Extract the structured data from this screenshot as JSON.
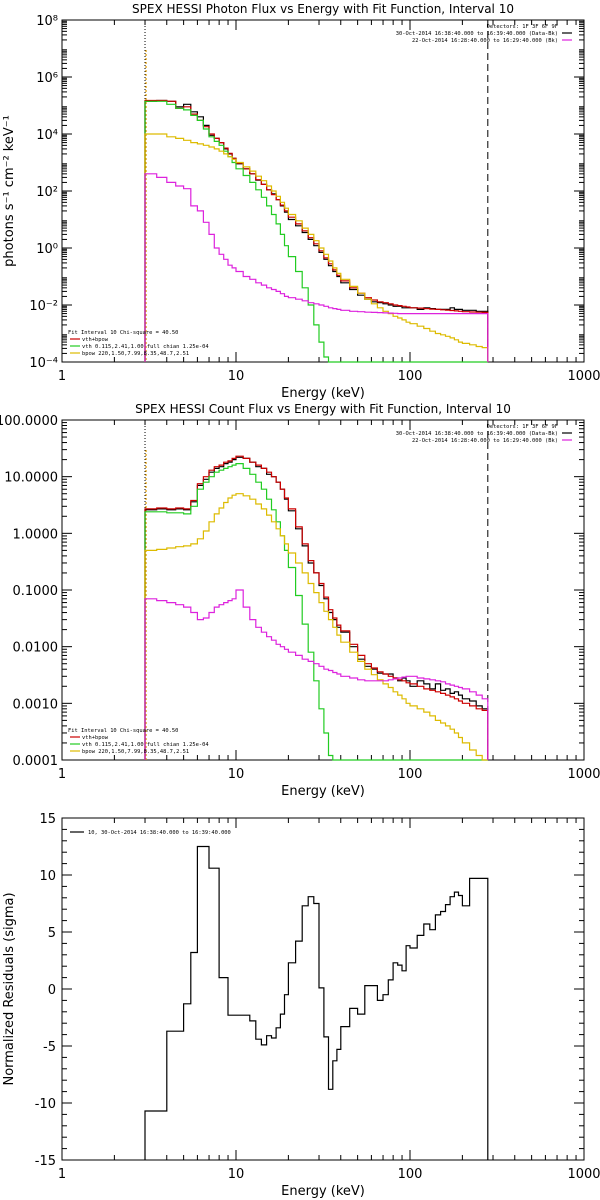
{
  "colors": {
    "total": "#000000",
    "sum": "#cc0000",
    "vth": "#22cc22",
    "bpow": "#ddbb00",
    "bkg": "#dd22dd",
    "edge": "#dd9900"
  },
  "chart_data": [
    {
      "type": "line",
      "title": "SPEX HESSI Photon Flux vs Energy with Fit Function, Interval 10",
      "xlabel": "Energy (keV)",
      "ylabel": "photons s⁻¹ cm⁻² keV⁻¹",
      "xscale": "log",
      "yscale": "log",
      "xlim": [
        1,
        1000
      ],
      "ylim": [
        0.0001,
        100000000
      ],
      "x_ticks": [
        "1",
        "10",
        "100",
        "1000"
      ],
      "y_ticks": [
        "10⁻⁴",
        "10⁻²",
        "10⁰",
        "10²",
        "10⁴",
        "10⁶",
        "10⁸"
      ],
      "legend_top_right": [
        "Detectors: 1F 3F 6F 9F",
        "30-Oct-2014 16:38:40.000 to 16:39:40.000 (Data-Bk)",
        "22-Oct-2014 16:28:40.000 to 16:29:40.000 (Bk)"
      ],
      "legend_bottom_left": [
        "Fit Interval 10   Chi-square = 40.50",
        "vth+bpow",
        "vth 0.115,2.41,1.00  full chian 1.25e-04",
        "bpow 220,1.50,7.99,8.35,48.7,2.51"
      ],
      "x": [
        3,
        3.5,
        4,
        4.5,
        5,
        5.5,
        6,
        6.5,
        7,
        7.5,
        8,
        8.5,
        9,
        9.5,
        10,
        11,
        12,
        13,
        14,
        15,
        16,
        17,
        18,
        19,
        20,
        22,
        24,
        26,
        28,
        30,
        32,
        34,
        36,
        38,
        40,
        45,
        50,
        55,
        60,
        65,
        70,
        75,
        80,
        85,
        90,
        95,
        100,
        110,
        120,
        130,
        140,
        150,
        160,
        170,
        180,
        190,
        200,
        220,
        240,
        260,
        280
      ],
      "series": [
        {
          "name": "Data-Bk",
          "values": [
            140000,
            150000,
            140000,
            90000,
            110000,
            60000,
            40000,
            20000,
            9000,
            7000,
            5000,
            3000,
            2000,
            1400,
            900,
            600,
            400,
            240,
            170,
            110,
            80,
            50,
            30,
            18,
            10,
            6,
            3.5,
            2,
            1.2,
            0.7,
            0.4,
            0.24,
            0.15,
            0.1,
            0.06,
            0.035,
            0.022,
            0.016,
            0.013,
            0.012,
            0.011,
            0.01,
            0.009,
            0.009,
            0.008,
            0.008,
            0.008,
            0.007,
            0.008,
            0.0075,
            0.007,
            0.007,
            0.007,
            0.008,
            0.007,
            0.007,
            0.0065,
            0.0065,
            0.006,
            0.006,
            0.006
          ]
        },
        {
          "name": "vth+bpow",
          "values": [
            150000,
            150000,
            140000,
            80000,
            90000,
            50000,
            30000,
            18000,
            10000,
            7000,
            5000,
            3200,
            2100,
            1400,
            950,
            600,
            400,
            250,
            170,
            110,
            75,
            50,
            32,
            20,
            12,
            7,
            4,
            2.3,
            1.4,
            0.8,
            0.45,
            0.28,
            0.17,
            0.11,
            0.07,
            0.04,
            0.026,
            0.018,
            0.015,
            0.013,
            0.012,
            0.011,
            0.01,
            0.0095,
            0.009,
            0.0085,
            0.008,
            0.0078,
            0.0075,
            0.0072,
            0.007,
            0.0068,
            0.0066,
            0.0064,
            0.0062,
            0.006,
            0.0058,
            0.0057,
            0.0056,
            0.0055,
            0.0055
          ]
        },
        {
          "name": "vth",
          "values": [
            140000,
            140000,
            110000,
            80000,
            70000,
            45000,
            30000,
            15000,
            8000,
            5500,
            4000,
            2500,
            1600,
            1000,
            600,
            350,
            200,
            110,
            60,
            30,
            15,
            7,
            3,
            1.2,
            0.5,
            0.15,
            0.04,
            0.01,
            0.002,
            0.0005,
            0.00015,
            0.0001,
            0.0001,
            0.0001,
            0.0001,
            0.0001,
            0.0001,
            0.0001,
            0.0001,
            0.0001,
            0.0001,
            0.0001,
            0.0001,
            0.0001,
            0.0001,
            0.0001,
            0.0001,
            0.0001,
            0.0001,
            0.0001,
            0.0001,
            0.0001,
            0.0001,
            0.0001,
            0.0001,
            0.0001,
            0.0001,
            0.0001,
            0.0001,
            0.0001,
            0.0001
          ]
        },
        {
          "name": "bpow",
          "values": [
            10000,
            10000,
            8000,
            7000,
            6000,
            5000,
            4500,
            4000,
            3500,
            3000,
            2500,
            2000,
            1600,
            1300,
            1000,
            700,
            500,
            330,
            230,
            150,
            100,
            65,
            40,
            25,
            15,
            9,
            5,
            3,
            1.8,
            1,
            0.6,
            0.35,
            0.2,
            0.13,
            0.08,
            0.045,
            0.026,
            0.016,
            0.011,
            0.008,
            0.006,
            0.005,
            0.004,
            0.0035,
            0.003,
            0.0025,
            0.0022,
            0.0018,
            0.0015,
            0.0012,
            0.001,
            0.0009,
            0.0008,
            0.0007,
            0.0006,
            0.0005,
            0.00045,
            0.0004,
            0.00035,
            0.00032,
            0.0003
          ]
        },
        {
          "name": "Bk",
          "values": [
            400,
            300,
            200,
            150,
            120,
            30,
            20,
            8,
            3,
            1,
            0.6,
            0.4,
            0.25,
            0.2,
            0.15,
            0.1,
            0.08,
            0.06,
            0.05,
            0.04,
            0.035,
            0.03,
            0.025,
            0.02,
            0.018,
            0.016,
            0.014,
            0.012,
            0.011,
            0.01,
            0.009,
            0.008,
            0.0075,
            0.007,
            0.0065,
            0.006,
            0.0058,
            0.0056,
            0.0055,
            0.0054,
            0.0053,
            0.0052,
            0.0051,
            0.005,
            0.005,
            0.005,
            0.005,
            0.005,
            0.005,
            0.005,
            0.005,
            0.005,
            0.005,
            0.005,
            0.005,
            0.005,
            0.005,
            0.005,
            0.005,
            0.005,
            0.005
          ]
        }
      ]
    },
    {
      "type": "line",
      "title": "SPEX HESSI Count Flux vs Energy with Fit Function, Interval 10",
      "xlabel": "Energy (keV)",
      "ylabel": "",
      "xscale": "log",
      "yscale": "log",
      "xlim": [
        1,
        1000
      ],
      "ylim": [
        0.0001,
        100
      ],
      "x_ticks": [
        "1",
        "10",
        "100",
        "1000"
      ],
      "y_ticks": [
        "0.0001",
        "0.0010",
        "0.0100",
        "0.1000",
        "1.0000",
        "10.0000",
        "100.0000"
      ],
      "legend_top_right": [
        "Detectors: 1F 3F 6F 9F",
        "30-Oct-2014 16:38:40.000 to 16:39:40.000 (Data-Bk)",
        "22-Oct-2014 16:28:40.000 to 16:29:40.000 (Bk)"
      ],
      "legend_bottom_left": [
        "Fit Interval 10   Chi-square = 40.50",
        "vth+bpow",
        "vth 0.115,2.41,1.00  full chian 1.25e-04",
        "bpow 220,1.50,7.99,8.35,48.7,2.51"
      ],
      "x": [
        3,
        3.5,
        4,
        4.5,
        5,
        5.5,
        6,
        6.5,
        7,
        7.5,
        8,
        8.5,
        9,
        9.5,
        10,
        11,
        12,
        13,
        14,
        15,
        16,
        17,
        18,
        19,
        20,
        22,
        24,
        26,
        28,
        30,
        32,
        34,
        36,
        38,
        40,
        45,
        50,
        55,
        60,
        65,
        70,
        75,
        80,
        85,
        90,
        95,
        100,
        110,
        120,
        130,
        140,
        150,
        160,
        170,
        180,
        190,
        200,
        220,
        240,
        260,
        280
      ],
      "series": [
        {
          "name": "Data-Bk",
          "values": [
            2.6,
            2.7,
            2.6,
            2.7,
            2.6,
            3.6,
            7,
            9,
            12,
            14,
            15,
            17,
            18,
            20,
            22,
            21,
            18,
            15,
            14,
            11,
            10,
            8,
            6,
            4,
            2.5,
            1.2,
            0.6,
            0.3,
            0.2,
            0.12,
            0.07,
            0.04,
            0.03,
            0.022,
            0.018,
            0.01,
            0.006,
            0.0045,
            0.004,
            0.0034,
            0.0033,
            0.0033,
            0.0028,
            0.0025,
            0.0028,
            0.0025,
            0.002,
            0.0025,
            0.0022,
            0.0018,
            0.0022,
            0.0017,
            0.0018,
            0.0015,
            0.0016,
            0.0014,
            0.0012,
            0.0011,
            0.0009,
            0.0008,
            0.0008
          ]
        },
        {
          "name": "vth+bpow",
          "values": [
            2.7,
            2.8,
            2.7,
            2.8,
            2.7,
            3.8,
            7.5,
            10,
            13,
            15,
            16,
            18,
            19,
            21,
            23,
            21,
            18,
            16,
            14,
            12,
            10,
            8,
            6,
            4.2,
            2.7,
            1.3,
            0.65,
            0.33,
            0.2,
            0.13,
            0.075,
            0.045,
            0.032,
            0.024,
            0.019,
            0.011,
            0.007,
            0.005,
            0.0042,
            0.0036,
            0.0033,
            0.003,
            0.0028,
            0.0026,
            0.0025,
            0.0023,
            0.0022,
            0.002,
            0.0018,
            0.0017,
            0.0016,
            0.0015,
            0.0014,
            0.0013,
            0.0012,
            0.0011,
            0.001,
            0.0009,
            0.0008,
            0.00075,
            0.0007
          ]
        },
        {
          "name": "vth",
          "values": [
            2.4,
            2.4,
            2.3,
            2.3,
            2.2,
            3,
            6,
            8,
            10,
            12,
            13,
            14,
            15,
            16,
            17,
            14,
            11,
            8,
            6,
            4,
            2.6,
            1.6,
            0.9,
            0.5,
            0.25,
            0.08,
            0.025,
            0.008,
            0.0025,
            0.0008,
            0.0003,
            0.00012,
            0.0001,
            0.0001,
            0.0001,
            0.0001,
            0.0001,
            0.0001,
            0.0001,
            0.0001,
            0.0001,
            0.0001,
            0.0001,
            0.0001,
            0.0001,
            0.0001,
            0.0001,
            0.0001,
            0.0001,
            0.0001,
            0.0001,
            0.0001,
            0.0001,
            0.0001,
            0.0001,
            0.0001,
            0.0001,
            0.0001,
            0.0001,
            0.0001,
            0.0001
          ]
        },
        {
          "name": "bpow",
          "values": [
            0.5,
            0.52,
            0.55,
            0.58,
            0.6,
            0.65,
            0.8,
            1.1,
            1.6,
            2.2,
            2.8,
            3.5,
            4.2,
            4.7,
            5,
            4.6,
            4,
            3.3,
            2.7,
            2.1,
            1.6,
            1.2,
            0.9,
            0.65,
            0.45,
            0.3,
            0.2,
            0.13,
            0.09,
            0.06,
            0.042,
            0.03,
            0.022,
            0.016,
            0.012,
            0.008,
            0.0055,
            0.004,
            0.0032,
            0.0026,
            0.0022,
            0.0019,
            0.0016,
            0.0014,
            0.0012,
            0.001,
            0.0009,
            0.0008,
            0.0007,
            0.0006,
            0.0005,
            0.00045,
            0.0004,
            0.00035,
            0.0003,
            0.00025,
            0.0002,
            0.00015,
            0.00012,
            0.0001,
            0.0001
          ]
        },
        {
          "name": "Bk",
          "values": [
            0.07,
            0.065,
            0.06,
            0.055,
            0.05,
            0.04,
            0.03,
            0.032,
            0.04,
            0.05,
            0.055,
            0.06,
            0.065,
            0.07,
            0.1,
            0.05,
            0.03,
            0.022,
            0.018,
            0.015,
            0.013,
            0.011,
            0.01,
            0.009,
            0.008,
            0.007,
            0.006,
            0.0055,
            0.005,
            0.0045,
            0.004,
            0.0038,
            0.0035,
            0.0033,
            0.003,
            0.0028,
            0.0026,
            0.0025,
            0.0025,
            0.0025,
            0.0025,
            0.0026,
            0.0027,
            0.0028,
            0.0029,
            0.003,
            0.003,
            0.0028,
            0.0027,
            0.0026,
            0.0025,
            0.0024,
            0.0022,
            0.0021,
            0.002,
            0.0019,
            0.0018,
            0.0016,
            0.0014,
            0.0012,
            0.0012
          ]
        }
      ]
    },
    {
      "type": "line",
      "title": "",
      "xlabel": "Energy (keV)",
      "ylabel": "Normalized Residuals (sigma)",
      "xscale": "log",
      "yscale": "linear",
      "xlim": [
        1,
        1000
      ],
      "ylim": [
        -15,
        15
      ],
      "x_ticks": [
        "1",
        "10",
        "100",
        "1000"
      ],
      "y_ticks": [
        "-15",
        "-10",
        "-5",
        "0",
        "5",
        "10",
        "15"
      ],
      "legend": "10, 30-Oct-2014 16:38:40.000 to 16:39:40.000",
      "x": [
        3,
        3.5,
        4,
        4.5,
        5,
        5.5,
        6,
        6.5,
        7,
        7.5,
        8,
        8.5,
        9,
        9.5,
        10,
        11,
        12,
        13,
        14,
        15,
        16,
        17,
        18,
        19,
        20,
        22,
        24,
        26,
        28,
        30,
        32,
        34,
        36,
        38,
        40,
        45,
        50,
        55,
        60,
        65,
        70,
        75,
        80,
        85,
        90,
        95,
        100,
        110,
        120,
        130,
        140,
        150,
        160,
        170,
        180,
        190,
        200,
        220,
        240,
        260,
        280
      ],
      "series": [
        {
          "name": "residuals",
          "values": [
            -10.7,
            -10.7,
            -3.7,
            -3.7,
            -1.3,
            3.2,
            12.5,
            12.5,
            10.6,
            10.6,
            1,
            1,
            -2.3,
            -2.3,
            -2.3,
            -2.3,
            -2.8,
            -4.4,
            -4.9,
            -4.1,
            -4.3,
            -3.4,
            -2.2,
            -0.5,
            2.3,
            4.2,
            7.3,
            8.1,
            7.5,
            0.1,
            -4.2,
            -8.8,
            -6.3,
            -5.3,
            -3.3,
            -1.7,
            -2.2,
            0.3,
            0.3,
            -1,
            -0.5,
            0.8,
            2.3,
            2.1,
            1.6,
            3.8,
            3.6,
            4.7,
            5.7,
            5.2,
            6.5,
            6.8,
            7.4,
            8.1,
            8.5,
            8.2,
            7.3,
            9.7,
            9.7,
            9.7,
            9.7
          ]
        }
      ]
    }
  ]
}
